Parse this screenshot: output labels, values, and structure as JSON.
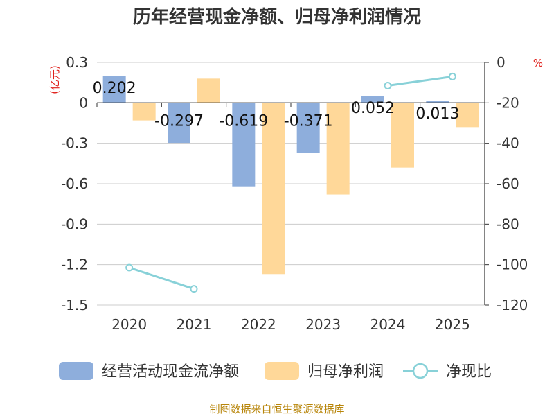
{
  "chart_data": {
    "type": "bar",
    "title": "历年经营现金净额、归母净利润情况",
    "categories": [
      "2020",
      "2021",
      "2022",
      "2023",
      "2024",
      "2025"
    ],
    "left_axis": {
      "unit": "(亿元)",
      "ylim": [
        -1.5,
        0.3
      ],
      "ticks": [
        "0.3",
        "0",
        "-0.3",
        "-0.6",
        "-0.9",
        "-1.2",
        "-1.5"
      ]
    },
    "right_axis": {
      "unit": "%",
      "ylim": [
        -120,
        0
      ],
      "ticks": [
        "0",
        "-20",
        "-40",
        "-60",
        "-80",
        "-100",
        "-120"
      ]
    },
    "series": [
      {
        "name": "经营活动现金流净额",
        "type": "bar",
        "axis": "left",
        "color": "#8eaedc",
        "values": [
          0.202,
          -0.297,
          -0.619,
          -0.371,
          0.052,
          0.013
        ],
        "labels": [
          "0.202",
          "-0.297",
          "-0.619",
          "-0.371",
          "0.052",
          "0.013"
        ]
      },
      {
        "name": "归母净利润",
        "type": "bar",
        "axis": "left",
        "color": "#ffd899",
        "values": [
          -0.13,
          0.18,
          -1.27,
          -0.68,
          -0.48,
          -0.18
        ]
      },
      {
        "name": "净现比",
        "type": "line",
        "axis": "right",
        "color": "#88d1d8",
        "values": [
          -101.5,
          -112,
          null,
          null,
          -11.5,
          -7
        ]
      }
    ],
    "grid": true,
    "legend_position": "bottom"
  },
  "source": "制图数据来自恒生聚源数据库"
}
